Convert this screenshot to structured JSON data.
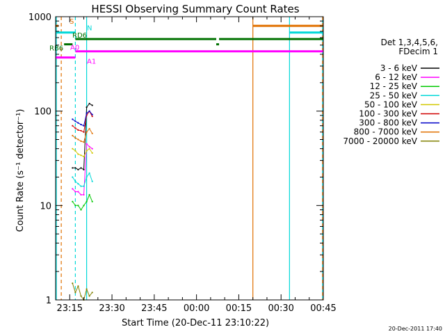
{
  "chart_data": {
    "type": "line",
    "title": "HESSI Observing Summary Count Rates",
    "xlabel": "Start Time (20-Dec-11 23:10:22)",
    "ylabel": "Count Rate (s⁻¹ detector⁻¹)",
    "yscale": "log",
    "ylim": [
      1,
      1000
    ],
    "xlim_min": [
      0,
      95
    ],
    "x_tick_labels": [
      "23:15",
      "23:30",
      "23:45",
      "00:00",
      "00:15",
      "00:30",
      "00:45"
    ],
    "x_tick_min": [
      5,
      20,
      35,
      50,
      65,
      80,
      95
    ],
    "y_tick_labels": [
      "1",
      "10",
      "100",
      "1000"
    ],
    "y_tick_values": [
      1,
      10,
      100,
      1000
    ],
    "grid": false,
    "legend_position": "right",
    "legend_header": [
      "Det 1,3,4,5,6,",
      "FDecim 1"
    ],
    "series": [
      {
        "name": "3 - 6 keV",
        "color": "#000000",
        "x": [
          6,
          7,
          8,
          9,
          10,
          11,
          12,
          13
        ],
        "values": [
          25,
          25,
          24,
          25,
          24,
          110,
          120,
          115
        ]
      },
      {
        "name": "6 - 12 keV",
        "color": "#ff00ff",
        "x": [
          6,
          7,
          8,
          9,
          10,
          11,
          12,
          13
        ],
        "values": [
          15,
          14,
          14,
          13,
          13,
          45,
          42,
          40
        ]
      },
      {
        "name": "12 - 25 keV",
        "color": "#00c800",
        "x": [
          6,
          7,
          8,
          9,
          10,
          11,
          12,
          13
        ],
        "values": [
          11,
          10,
          10,
          9,
          10,
          11,
          13,
          11
        ]
      },
      {
        "name": "25 - 50 keV",
        "color": "#00d8d8",
        "x": [
          6,
          7,
          8,
          9,
          10,
          11,
          12,
          13
        ],
        "values": [
          20,
          18,
          17,
          16,
          16,
          20,
          22,
          18
        ]
      },
      {
        "name": "50 - 100 keV",
        "color": "#d2c800",
        "x": [
          6,
          7,
          8,
          9,
          10,
          11,
          12,
          13
        ],
        "values": [
          40,
          38,
          35,
          34,
          33,
          38,
          40,
          36
        ]
      },
      {
        "name": "100 - 300 keV",
        "color": "#d00000",
        "x": [
          6,
          7,
          8,
          9,
          10,
          11,
          12,
          13
        ],
        "values": [
          70,
          66,
          63,
          62,
          60,
          90,
          100,
          88
        ]
      },
      {
        "name": "300 - 800 keV",
        "color": "#0000c8",
        "x": [
          6,
          7,
          8,
          9,
          10,
          11,
          12,
          13
        ],
        "values": [
          82,
          78,
          75,
          72,
          70,
          95,
          100,
          92
        ]
      },
      {
        "name": "800 - 7000 keV",
        "color": "#e07000",
        "x": [
          6,
          7,
          8,
          9,
          10,
          11,
          12,
          13
        ],
        "values": [
          55,
          52,
          50,
          48,
          47,
          60,
          65,
          58
        ]
      },
      {
        "name": "7000 - 20000 keV",
        "color": "#808000",
        "x": [
          6,
          7,
          8,
          9,
          10,
          11,
          12,
          13
        ],
        "values": [
          1.5,
          1.2,
          1.4,
          1.1,
          1.0,
          1.3,
          1.1,
          1.2
        ]
      }
    ],
    "flags": [
      {
        "label": "S",
        "color": "#e07000",
        "level": 800,
        "segments": [
          [
            -2,
            1
          ],
          [
            70,
            95
          ]
        ]
      },
      {
        "label": "N",
        "color": "#00d8d8",
        "level": 680,
        "segments": [
          [
            -2,
            7
          ],
          [
            83,
            95
          ]
        ]
      },
      {
        "label": "RD6",
        "color": "#007000",
        "level": 580,
        "segments": [
          [
            7,
            57
          ],
          [
            58,
            95
          ]
        ]
      },
      {
        "label": "RB6",
        "color": "#007000",
        "level": 510,
        "segments": [
          [
            3,
            6
          ],
          [
            57,
            58
          ]
        ]
      },
      {
        "label": "A0",
        "color": "#ff00ff",
        "level": 430,
        "segments": [
          [
            7,
            95
          ]
        ]
      },
      {
        "label": "A1",
        "color": "#ff00ff",
        "level": 370,
        "segments": [
          [
            -2,
            7
          ]
        ]
      }
    ],
    "vertical_markers": [
      {
        "x": -1.5,
        "color": "#00d8d8",
        "style": "solid"
      },
      {
        "x": 2,
        "color": "#e07000",
        "style": "dashed"
      },
      {
        "x": 7,
        "color": "#00d8d8",
        "style": "dashed"
      },
      {
        "x": 11,
        "color": "#00d8d8",
        "style": "solid"
      },
      {
        "x": 70,
        "color": "#e07000",
        "style": "solid"
      },
      {
        "x": 83,
        "color": "#00d8d8",
        "style": "solid"
      },
      {
        "x": 95,
        "color": "#00d8d8",
        "style": "solid"
      },
      {
        "x": 95.2,
        "color": "#e07000",
        "style": "dashed"
      }
    ],
    "timestamp": "20-Dec-2011 17:40"
  }
}
